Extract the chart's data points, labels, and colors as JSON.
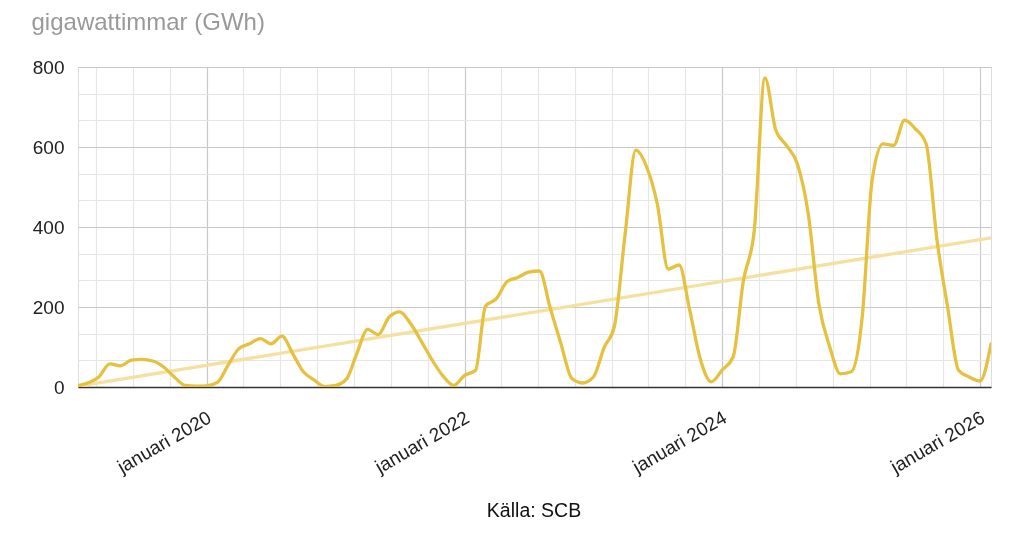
{
  "chart_data": {
    "type": "line",
    "ylabel": "gigawattimmar (GWh)",
    "annotations": [
      "Källa: SCB"
    ],
    "x": [
      "2019-01",
      "2019-02",
      "2019-03",
      "2019-04",
      "2019-05",
      "2019-06",
      "2019-07",
      "2019-08",
      "2019-09",
      "2019-10",
      "2019-11",
      "2019-12",
      "2020-01",
      "2020-02",
      "2020-03",
      "2020-04",
      "2020-05",
      "2020-06",
      "2020-07",
      "2020-08",
      "2020-09",
      "2020-10",
      "2020-11",
      "2020-12",
      "2021-01",
      "2021-02",
      "2021-03",
      "2021-04",
      "2021-05",
      "2021-06",
      "2021-07",
      "2021-08",
      "2021-09",
      "2021-10",
      "2021-11",
      "2021-12",
      "2022-01",
      "2022-02",
      "2022-03",
      "2022-04",
      "2022-05",
      "2022-06",
      "2022-07",
      "2022-08",
      "2022-09",
      "2022-10",
      "2022-11",
      "2022-12",
      "2023-01",
      "2023-02",
      "2023-03",
      "2023-04",
      "2023-05",
      "2023-06",
      "2023-07",
      "2023-08",
      "2023-09",
      "2023-10",
      "2023-11",
      "2023-12",
      "2024-01",
      "2024-02",
      "2024-03",
      "2024-04",
      "2024-05",
      "2024-06",
      "2024-07",
      "2024-08",
      "2024-09",
      "2024-10",
      "2024-11",
      "2024-12",
      "2025-01",
      "2025-02",
      "2025-03",
      "2025-04",
      "2025-05",
      "2025-06",
      "2025-07",
      "2025-08",
      "2025-09",
      "2025-10",
      "2025-11",
      "2025-12",
      "2026-01",
      "2026-02"
    ],
    "series": [
      {
        "color": "#e5c13f",
        "values": [
          3,
          11,
          25,
          58,
          53,
          67,
          69,
          65,
          50,
          25,
          4,
          2,
          3,
          12,
          54,
          96,
          108,
          121,
          108,
          127,
          83,
          38,
          17,
          1,
          4,
          21,
          83,
          144,
          131,
          175,
          188,
          158,
          113,
          67,
          27,
          4,
          29,
          42,
          202,
          221,
          263,
          274,
          287,
          290,
          196,
          108,
          21,
          10,
          25,
          100,
          150,
          383,
          592,
          550,
          458,
          295,
          305,
          192,
          67,
          13,
          42,
          75,
          265,
          392,
          773,
          642,
          604,
          558,
          433,
          208,
          100,
          33,
          38,
          175,
          517,
          608,
          604,
          667,
          646,
          608,
          367,
          200,
          42,
          25,
          15,
          108
        ]
      },
      {
        "type": "line",
        "x": [
          "2019-01",
          "2026-02"
        ],
        "color": "#f6e0a0",
        "values": [
          2,
          373
        ]
      }
    ],
    "xlim": [
      "2019-01",
      "2026-02"
    ],
    "xticks": [
      {
        "value": "2019-02-22",
        "label": null
      },
      {
        "value": "2019-06-06",
        "label": null
      },
      {
        "value": "2019-09-19",
        "label": null
      },
      {
        "value": "2020-01-01",
        "label": "januari 2020"
      },
      {
        "value": "2020-04-14",
        "label": null
      },
      {
        "value": "2020-07-28",
        "label": null
      },
      {
        "value": "2020-11-09",
        "label": null
      },
      {
        "value": "2021-02-22",
        "label": null
      },
      {
        "value": "2021-06-06",
        "label": null
      },
      {
        "value": "2021-09-19",
        "label": null
      },
      {
        "value": "2022-01-01",
        "label": "januari 2022"
      },
      {
        "value": "2022-04-15",
        "label": null
      },
      {
        "value": "2022-07-29",
        "label": null
      },
      {
        "value": "2022-11-10",
        "label": null
      },
      {
        "value": "2023-02-22",
        "label": null
      },
      {
        "value": "2023-06-06",
        "label": null
      },
      {
        "value": "2023-09-19",
        "label": null
      },
      {
        "value": "2024-01-01",
        "label": "januari 2024"
      },
      {
        "value": "2024-04-14",
        "label": null
      },
      {
        "value": "2024-07-28",
        "label": null
      },
      {
        "value": "2024-11-09",
        "label": null
      },
      {
        "value": "2025-02-22",
        "label": null
      },
      {
        "value": "2025-06-06",
        "label": null
      },
      {
        "value": "2025-09-19",
        "label": null
      },
      {
        "value": "2026-01-01",
        "label": "januari 2026"
      }
    ],
    "ylim": [
      0,
      800
    ],
    "yticks": [
      0,
      {
        "value": 66.7,
        "label": null
      },
      {
        "value": 133.3,
        "label": null
      },
      200,
      {
        "value": 266.7,
        "label": null
      },
      {
        "value": 333.3,
        "label": null
      },
      400,
      {
        "value": 466.7,
        "label": null
      },
      {
        "value": 533.3,
        "label": null
      },
      600,
      {
        "value": 666.7,
        "label": null
      },
      {
        "value": 733.3,
        "label": null
      },
      800
    ],
    "grid": true,
    "line_style": "solid"
  }
}
